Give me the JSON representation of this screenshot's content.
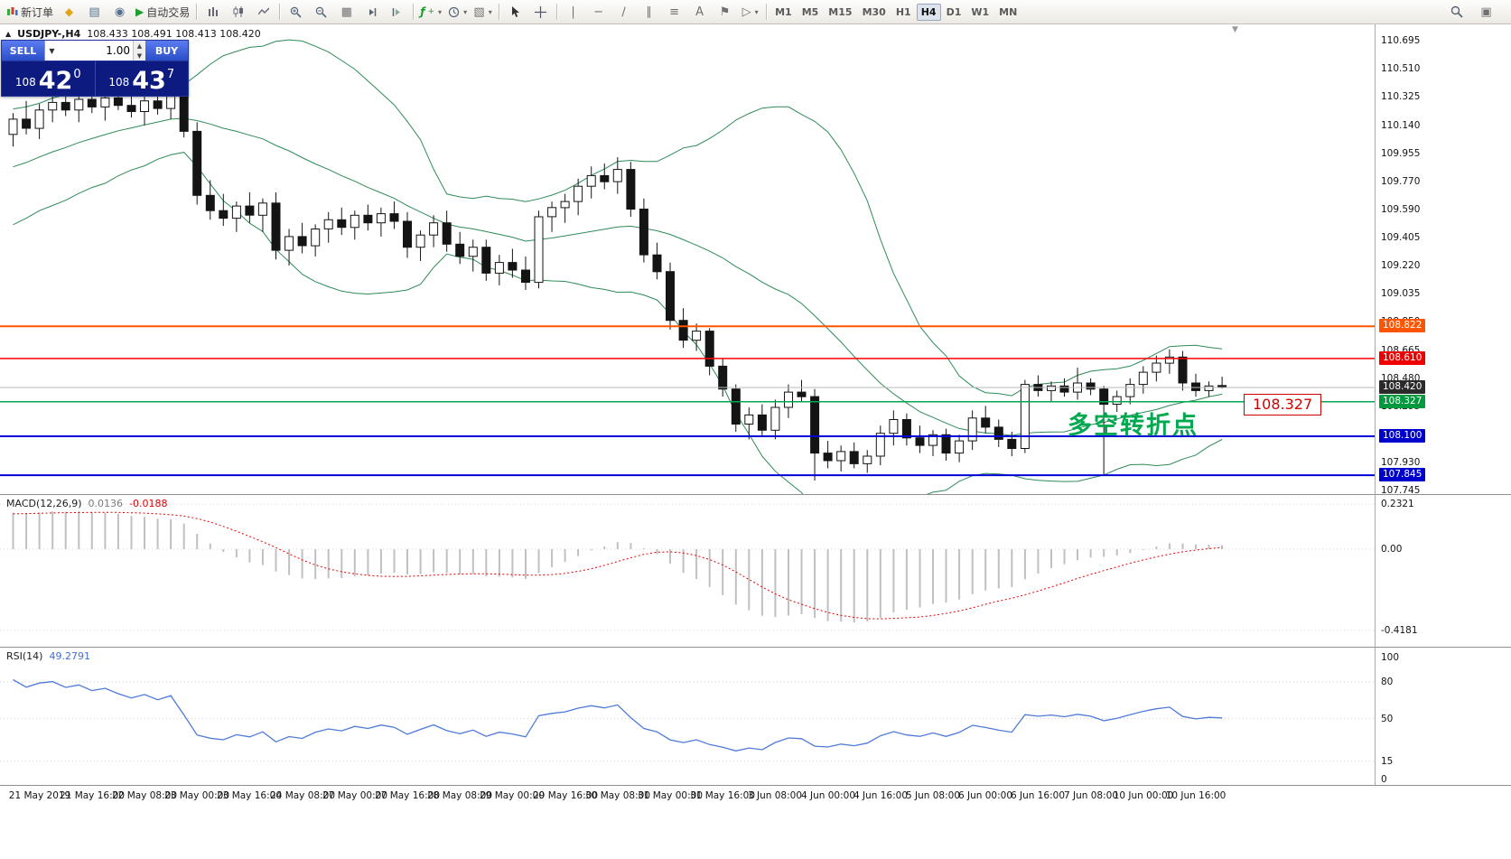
{
  "toolbar": {
    "new_order_label": "新订单",
    "autotrading_label": "自动交易",
    "text_tool_label": "A",
    "timeframes": [
      "M1",
      "M5",
      "M15",
      "M30",
      "H1",
      "H4",
      "D1",
      "W1",
      "MN"
    ],
    "active_timeframe": "H4"
  },
  "chart": {
    "symbol": "USDJPY-,H4",
    "ohlc": "108.433 108.491 108.413 108.420",
    "trade_panel": {
      "sell_label": "SELL",
      "buy_label": "BUY",
      "volume": "1.00",
      "sell_prefix": "108",
      "sell_big": "42",
      "sell_sup": "0",
      "buy_prefix": "108",
      "buy_big": "43",
      "buy_sup": "7"
    },
    "annotation": "多空转折点",
    "annotation_color": "#00a84f",
    "callout": "108.327",
    "callout_color": "#d00000",
    "y_axis": [
      "110.695",
      "110.510",
      "110.325",
      "110.140",
      "109.955",
      "109.770",
      "109.590",
      "109.405",
      "109.220",
      "109.035",
      "108.850",
      "108.665",
      "108.480",
      "108.295",
      "108.110",
      "107.930",
      "107.745"
    ],
    "hlines": [
      {
        "price": "108.822",
        "color": "#ff5500",
        "tag": "#ff5500",
        "width": 2
      },
      {
        "price": "108.610",
        "color": "#ff0000",
        "tag": "#ee0000",
        "width": 1.5
      },
      {
        "price": "108.420",
        "color": "#b8b8b8",
        "tag": "#2b2b2b",
        "width": 1
      },
      {
        "price": "108.327",
        "color": "#00a84f",
        "tag": "#00993d",
        "width": 1.5
      },
      {
        "price": "108.100",
        "color": "#0000d8",
        "tag": "#0000cc",
        "width": 2
      },
      {
        "price": "107.845",
        "color": "#0000d8",
        "tag": "#0000cc",
        "width": 2
      }
    ],
    "time_axis": [
      "21 May 2019",
      "21 May 16:00",
      "22 May 08:00",
      "23 May 00:00",
      "23 May 16:00",
      "24 May 08:00",
      "27 May 00:00",
      "27 May 16:00",
      "28 May 08:00",
      "29 May 00:00",
      "29 May 16:00",
      "30 May 08:00",
      "31 May 00:00",
      "31 May 16:00",
      "3 Jun 08:00",
      "4 Jun 00:00",
      "4 Jun 16:00",
      "5 Jun 08:00",
      "6 Jun 00:00",
      "6 Jun 16:00",
      "7 Jun 08:00",
      "10 Jun 00:00",
      "10 Jun 16:00"
    ]
  },
  "macd": {
    "name": "MACD(12,26,9)",
    "value1": "0.0136",
    "value2": "-0.0188",
    "scale_top": "0.2321",
    "scale_zero": "0.00",
    "scale_bottom": "-0.4181"
  },
  "rsi": {
    "name": "RSI(14)",
    "value": "49.2791",
    "scale": [
      "100",
      "80",
      "50",
      "15",
      "0"
    ]
  },
  "chart_data": {
    "type": "candlestick",
    "symbol": "USDJPY",
    "timeframe": "H4",
    "price_range": [
      107.72,
      110.8
    ],
    "indicators": {
      "bollinger_period": 20,
      "bollinger_dev": 2,
      "macd": [
        12,
        26,
        9
      ],
      "rsi_period": 14
    },
    "warmup_closes": [
      109.22,
      109.28,
      109.25,
      109.34,
      109.41,
      109.38,
      109.48,
      109.55,
      109.52,
      109.61,
      109.68,
      109.65,
      109.74,
      109.8,
      109.77,
      109.85,
      109.91,
      109.88,
      109.95,
      110.0,
      109.97,
      110.03,
      110.08,
      110.02,
      110.06,
      110.1
    ],
    "candles": [
      [
        110.08,
        110.22,
        110.0,
        110.18
      ],
      [
        110.18,
        110.3,
        110.08,
        110.12
      ],
      [
        110.12,
        110.28,
        110.05,
        110.24
      ],
      [
        110.24,
        110.33,
        110.16,
        110.29
      ],
      [
        110.29,
        110.36,
        110.2,
        110.24
      ],
      [
        110.24,
        110.34,
        110.16,
        110.31
      ],
      [
        110.31,
        110.38,
        110.22,
        110.26
      ],
      [
        110.26,
        110.35,
        110.17,
        110.32
      ],
      [
        110.32,
        110.4,
        110.24,
        110.27
      ],
      [
        110.27,
        110.35,
        110.19,
        110.23
      ],
      [
        110.23,
        110.33,
        110.14,
        110.3
      ],
      [
        110.3,
        110.37,
        110.21,
        110.25
      ],
      [
        110.25,
        110.38,
        110.18,
        110.33
      ],
      [
        110.33,
        110.38,
        110.06,
        110.1
      ],
      [
        110.1,
        110.16,
        109.62,
        109.68
      ],
      [
        109.68,
        109.78,
        109.52,
        109.58
      ],
      [
        109.58,
        109.69,
        109.48,
        109.53
      ],
      [
        109.53,
        109.64,
        109.44,
        109.61
      ],
      [
        109.61,
        109.7,
        109.5,
        109.55
      ],
      [
        109.55,
        109.66,
        109.44,
        109.63
      ],
      [
        109.63,
        109.7,
        109.26,
        109.32
      ],
      [
        109.32,
        109.46,
        109.22,
        109.41
      ],
      [
        109.41,
        109.5,
        109.3,
        109.35
      ],
      [
        109.35,
        109.49,
        109.28,
        109.46
      ],
      [
        109.46,
        109.57,
        109.37,
        109.52
      ],
      [
        109.52,
        109.6,
        109.42,
        109.47
      ],
      [
        109.47,
        109.58,
        109.39,
        109.55
      ],
      [
        109.55,
        109.62,
        109.45,
        109.5
      ],
      [
        109.5,
        109.6,
        109.41,
        109.56
      ],
      [
        109.56,
        109.64,
        109.46,
        109.51
      ],
      [
        109.51,
        109.57,
        109.27,
        109.34
      ],
      [
        109.34,
        109.45,
        109.25,
        109.42
      ],
      [
        109.42,
        109.55,
        109.34,
        109.5
      ],
      [
        109.5,
        109.58,
        109.31,
        109.36
      ],
      [
        109.36,
        109.44,
        109.23,
        109.28
      ],
      [
        109.28,
        109.39,
        109.18,
        109.34
      ],
      [
        109.34,
        109.39,
        109.12,
        109.17
      ],
      [
        109.17,
        109.29,
        109.09,
        109.24
      ],
      [
        109.24,
        109.33,
        109.14,
        109.19
      ],
      [
        109.19,
        109.28,
        109.06,
        109.11
      ],
      [
        109.11,
        109.58,
        109.07,
        109.54
      ],
      [
        109.54,
        109.64,
        109.44,
        109.6
      ],
      [
        109.6,
        109.69,
        109.5,
        109.64
      ],
      [
        109.64,
        109.79,
        109.55,
        109.74
      ],
      [
        109.74,
        109.87,
        109.66,
        109.81
      ],
      [
        109.81,
        109.89,
        109.72,
        109.77
      ],
      [
        109.77,
        109.93,
        109.69,
        109.85
      ],
      [
        109.85,
        109.9,
        109.54,
        109.59
      ],
      [
        109.59,
        109.66,
        109.24,
        109.29
      ],
      [
        109.29,
        109.37,
        109.13,
        109.18
      ],
      [
        109.18,
        109.24,
        108.8,
        108.86
      ],
      [
        108.86,
        108.94,
        108.68,
        108.73
      ],
      [
        108.73,
        108.84,
        108.66,
        108.79
      ],
      [
        108.79,
        108.81,
        108.5,
        108.56
      ],
      [
        108.56,
        108.61,
        108.36,
        108.41
      ],
      [
        108.41,
        108.44,
        108.13,
        108.18
      ],
      [
        108.18,
        108.29,
        108.08,
        108.24
      ],
      [
        108.24,
        108.31,
        108.1,
        108.14
      ],
      [
        108.14,
        108.34,
        108.08,
        108.29
      ],
      [
        108.29,
        108.44,
        108.22,
        108.39
      ],
      [
        108.39,
        108.47,
        108.33,
        108.36
      ],
      [
        108.36,
        108.41,
        107.81,
        107.99
      ],
      [
        107.99,
        108.07,
        107.89,
        107.94
      ],
      [
        107.94,
        108.04,
        107.87,
        108.0
      ],
      [
        108.0,
        108.06,
        107.89,
        107.92
      ],
      [
        107.92,
        108.01,
        107.86,
        107.97
      ],
      [
        107.97,
        108.17,
        107.91,
        108.12
      ],
      [
        108.12,
        108.27,
        108.04,
        108.21
      ],
      [
        108.21,
        108.25,
        108.04,
        108.09
      ],
      [
        108.09,
        108.17,
        107.99,
        108.04
      ],
      [
        108.04,
        108.14,
        107.97,
        108.11
      ],
      [
        108.11,
        108.15,
        107.94,
        107.99
      ],
      [
        107.99,
        108.11,
        107.93,
        108.07
      ],
      [
        108.07,
        108.27,
        108.01,
        108.22
      ],
      [
        108.22,
        108.3,
        108.12,
        108.16
      ],
      [
        108.16,
        108.21,
        108.03,
        108.08
      ],
      [
        108.08,
        108.13,
        107.97,
        108.02
      ],
      [
        108.02,
        108.47,
        107.99,
        108.44
      ],
      [
        108.44,
        108.5,
        108.36,
        108.4
      ],
      [
        108.4,
        108.46,
        108.33,
        108.43
      ],
      [
        108.43,
        108.48,
        108.36,
        108.39
      ],
      [
        108.39,
        108.55,
        108.34,
        108.45
      ],
      [
        108.45,
        108.48,
        108.37,
        108.41
      ],
      [
        108.41,
        108.43,
        107.85,
        108.31
      ],
      [
        108.31,
        108.4,
        108.26,
        108.36
      ],
      [
        108.36,
        108.48,
        108.31,
        108.44
      ],
      [
        108.44,
        108.56,
        108.38,
        108.52
      ],
      [
        108.52,
        108.63,
        108.46,
        108.58
      ],
      [
        108.58,
        108.67,
        108.51,
        108.62
      ],
      [
        108.62,
        108.66,
        108.4,
        108.45
      ],
      [
        108.45,
        108.51,
        108.36,
        108.4
      ],
      [
        108.4,
        108.46,
        108.36,
        108.43
      ],
      [
        108.433,
        108.491,
        108.413,
        108.42
      ]
    ]
  }
}
